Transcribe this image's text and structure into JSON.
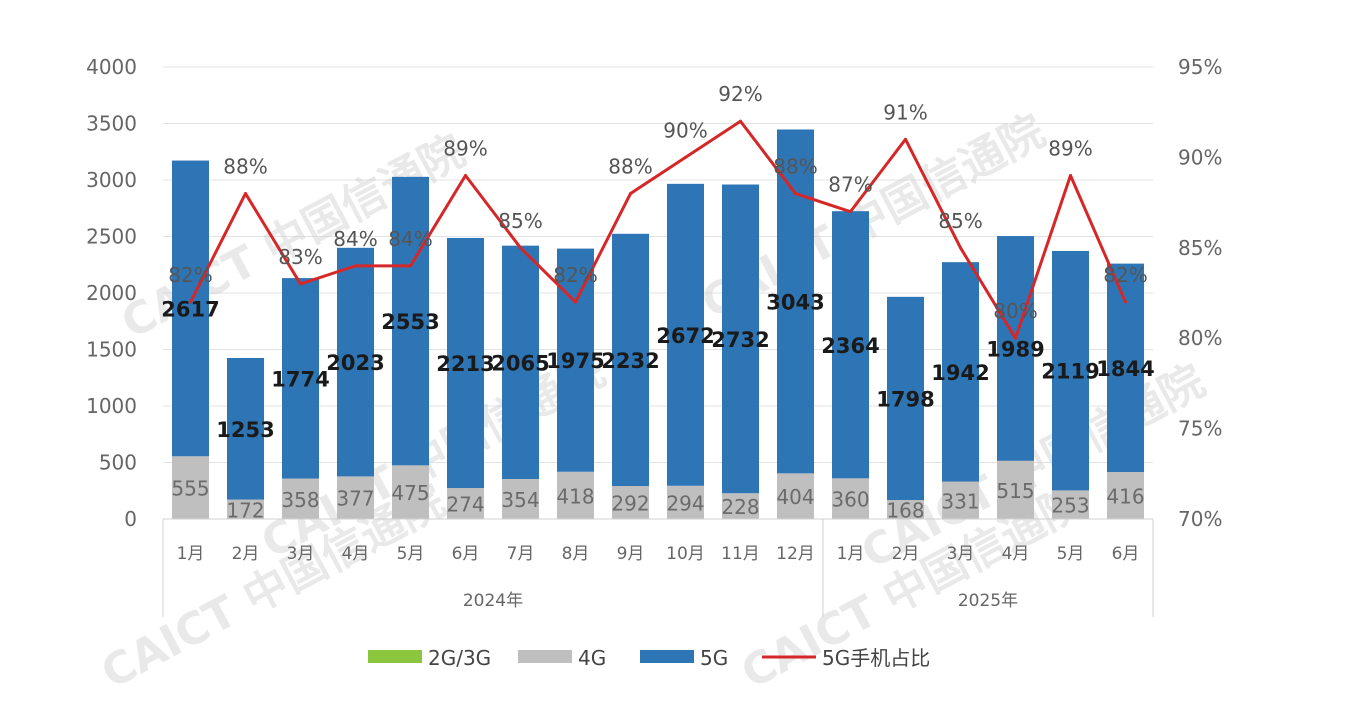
{
  "chart_data": {
    "type": "bar",
    "stacked": true,
    "categories": [
      "1月",
      "2月",
      "3月",
      "4月",
      "5月",
      "6月",
      "7月",
      "8月",
      "9月",
      "10月",
      "11月",
      "12月",
      "1月",
      "2月",
      "3月",
      "4月",
      "5月",
      "6月"
    ],
    "year_groups": [
      {
        "label": "2024年",
        "start": 0,
        "end": 11
      },
      {
        "label": "2025年",
        "start": 12,
        "end": 17
      }
    ],
    "series": [
      {
        "name": "2G/3G",
        "type": "bar",
        "color": "#8cc63f",
        "values": [
          0,
          0,
          0,
          0,
          0,
          0,
          0,
          0,
          0,
          0,
          0,
          0,
          0,
          0,
          0,
          0,
          0,
          0
        ]
      },
      {
        "name": "4G",
        "type": "bar",
        "color": "#bfbfbf",
        "values": [
          555,
          172,
          358,
          377,
          475,
          274,
          354,
          418,
          292,
          294,
          228,
          404,
          360,
          168,
          331,
          515,
          253,
          416
        ]
      },
      {
        "name": "5G",
        "type": "bar",
        "color": "#2e75b6",
        "values": [
          2617,
          1253,
          1774,
          2023,
          2553,
          2213,
          2065,
          1975,
          2232,
          2672,
          2732,
          3043,
          2364,
          1798,
          1942,
          1989,
          2119,
          1844
        ]
      },
      {
        "name": "5G手机占比",
        "type": "line",
        "axis": "right",
        "color": "#d62728",
        "values": [
          82,
          88,
          83,
          84,
          84,
          89,
          85,
          82,
          88,
          90,
          92,
          88,
          87,
          91,
          85,
          80,
          89,
          82
        ]
      }
    ],
    "line_label_texts": [
      "82%",
      "88%",
      "83%",
      "84%",
      "84%",
      "89%",
      "85%",
      "82%",
      "88%",
      "90%",
      "92%",
      "88%",
      "87%",
      "91%",
      "85%",
      "80%",
      "89%",
      "82%"
    ],
    "left_axis": {
      "ylim": [
        0,
        4000
      ],
      "ticks": [
        "0",
        "500",
        "1000",
        "1500",
        "2000",
        "2500",
        "3000",
        "3500",
        "4000"
      ]
    },
    "right_axis": {
      "ylim": [
        70,
        95
      ],
      "ticks": [
        "70%",
        "75%",
        "80%",
        "85%",
        "90%",
        "95%"
      ]
    },
    "grid": true,
    "legend_position": "bottom",
    "watermark_text": "CAICT 中国信通院"
  },
  "legend": {
    "items": [
      {
        "label": "2G/3G",
        "kind": "bar",
        "color": "#8cc63f"
      },
      {
        "label": "4G",
        "kind": "bar",
        "color": "#bfbfbf"
      },
      {
        "label": "5G",
        "kind": "bar",
        "color": "#2e75b6"
      },
      {
        "label": "5G手机占比",
        "kind": "line",
        "color": "#d62728"
      }
    ]
  }
}
